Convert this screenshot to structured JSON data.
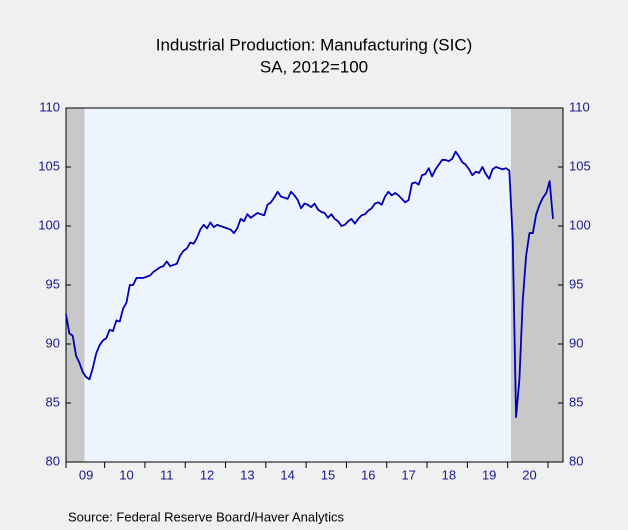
{
  "chart_data": {
    "type": "line",
    "title": "Industrial Production: Manufacturing (SIC)",
    "subtitle": "SA, 2012=100",
    "source": "Source:  Federal Reserve Board/Haver Analytics",
    "categories": [
      null,
      null,
      null,
      null,
      null,
      null,
      "09",
      null,
      null,
      null,
      null,
      null,
      null,
      null,
      null,
      null,
      null,
      null,
      "10",
      null,
      null,
      null,
      null,
      null,
      null,
      null,
      null,
      null,
      null,
      null,
      "11",
      null,
      null,
      null,
      null,
      null,
      null,
      null,
      null,
      null,
      null,
      null,
      "12",
      null,
      null,
      null,
      null,
      null,
      null,
      null,
      null,
      null,
      null,
      null,
      "13",
      null,
      null,
      null,
      null,
      null,
      null,
      null,
      null,
      null,
      null,
      null,
      "14",
      null,
      null,
      null,
      null,
      null,
      null,
      null,
      null,
      null,
      null,
      null,
      "15",
      null,
      null,
      null,
      null,
      null,
      null,
      null,
      null,
      null,
      null,
      null,
      "16",
      null,
      null,
      null,
      null,
      null,
      null,
      null,
      null,
      null,
      null,
      null,
      "17",
      null,
      null,
      null,
      null,
      null,
      null,
      null,
      null,
      null,
      null,
      null,
      "18",
      null,
      null,
      null,
      null,
      null,
      null,
      null,
      null,
      null,
      null,
      null,
      "19",
      null,
      null,
      null,
      null,
      null,
      null,
      null,
      null,
      null,
      null,
      null,
      "20",
      null,
      null,
      null,
      null,
      null,
      null,
      null
    ],
    "series": [
      {
        "color": "#0000b4",
        "values": [
          92.5,
          90.9,
          90.7,
          89.0,
          88.4,
          87.6,
          87.2,
          87.0,
          88.0,
          89.2,
          89.9,
          90.3,
          90.5,
          91.2,
          91.1,
          92.0,
          91.9,
          93.0,
          93.5,
          95.0,
          95.0,
          95.6,
          95.6,
          95.6,
          95.7,
          95.8,
          96.1,
          96.3,
          96.5,
          96.6,
          97.0,
          96.6,
          96.7,
          96.8,
          97.5,
          97.9,
          98.1,
          98.6,
          98.5,
          99.0,
          99.7,
          100.1,
          99.8,
          100.3,
          99.9,
          100.1,
          100.0,
          99.9,
          99.8,
          99.7,
          99.4,
          99.8,
          100.6,
          100.4,
          101.0,
          100.7,
          100.9,
          101.1,
          101.0,
          100.9,
          101.8,
          102.0,
          102.4,
          102.9,
          102.5,
          102.4,
          102.3,
          102.9,
          102.6,
          102.2,
          101.5,
          101.9,
          101.8,
          101.6,
          101.9,
          101.4,
          101.2,
          101.1,
          100.7,
          101.0,
          100.6,
          100.4,
          100.0,
          100.1,
          100.4,
          100.6,
          100.2,
          100.6,
          100.9,
          101.0,
          101.3,
          101.5,
          101.9,
          102.0,
          101.8,
          102.5,
          102.9,
          102.6,
          102.8,
          102.6,
          102.3,
          102.0,
          102.2,
          103.6,
          103.7,
          103.5,
          104.3,
          104.4,
          104.9,
          104.2,
          104.8,
          105.2,
          105.6,
          105.6,
          105.5,
          105.7,
          106.3,
          105.9,
          105.4,
          105.2,
          104.8,
          104.3,
          104.6,
          104.5,
          105.0,
          104.4,
          104.0,
          104.8,
          105.0,
          104.9,
          104.8,
          104.9,
          104.7,
          99.0,
          83.8,
          87.0,
          93.7,
          97.5,
          99.4,
          99.4,
          101.0,
          101.8,
          102.4,
          102.8,
          103.8,
          100.6
        ]
      }
    ],
    "shading": [
      {
        "from": 0,
        "to": 5,
        "color": "#c8c8c8"
      },
      {
        "from": 133,
        "to": 145,
        "color": "#c8c8c8"
      }
    ],
    "plot_color": "#eef4fd",
    "ylim": [
      80,
      110
    ],
    "yticks": [
      80,
      85,
      90,
      95,
      100,
      105,
      110
    ],
    "y2lim": [
      80,
      110
    ],
    "y2ticks": [
      80,
      85,
      90,
      95,
      100,
      105,
      110
    ]
  }
}
